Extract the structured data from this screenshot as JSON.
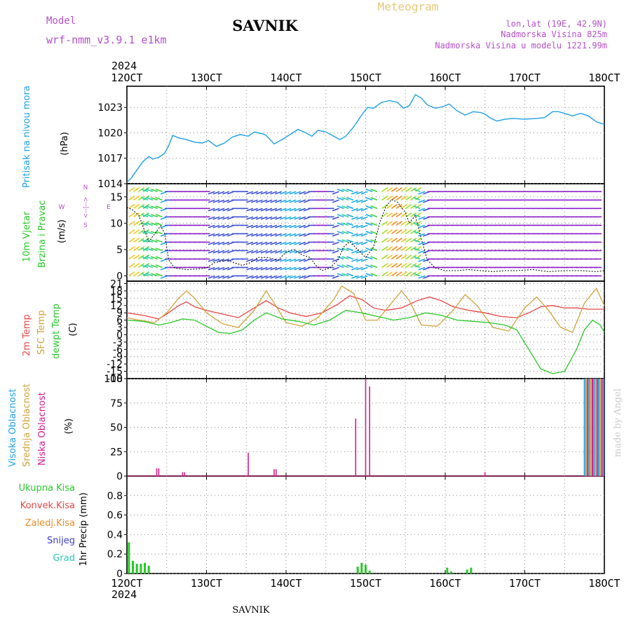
{
  "header": {
    "model_label": "Model",
    "model_name": "wrf-nmm_v3.9.1 e1km",
    "station": "SAVNIK",
    "product": "Meteogram",
    "lonlat": "lon,lat (19E, 42.9N)",
    "elevation": "Nadmorska Visina 825m",
    "model_elevation": "Nadmorska Visina u modelu 1221.99m",
    "footer_station": "SAVNIK",
    "credit": "made by Angel"
  },
  "colors": {
    "pressure": "#1ea0e6",
    "temp2m": "#e64646",
    "sfc_temp": "#d2a23c",
    "dewpoint": "#28c828",
    "high_cloud": "#1ea0e6",
    "mid_cloud": "#d2a23c",
    "low_cloud": "#d21e8c",
    "total_precip": "#28c828",
    "conv_precip": "#e64646",
    "frozen_precip": "#f08c28",
    "snow": "#3c3cd2",
    "hail": "#28c8b4",
    "model_label": "#b450c8",
    "wind_label": "#28c828"
  },
  "chart_data": [
    {
      "type": "line",
      "name": "pressure",
      "title": "Pritisak na nivou mora",
      "ylabel": "(hPa)",
      "ylim": [
        1014,
        1025.5
      ],
      "yticks": [
        1014,
        1017,
        1020,
        1023
      ],
      "x_ticks": [
        "12OCT",
        "13OCT",
        "14OCT",
        "15OCT",
        "16OCT",
        "17OCT",
        "18OCT"
      ],
      "year": "2024",
      "points": [
        [
          0,
          1014.2
        ],
        [
          0.1,
          1014.6
        ],
        [
          0.25,
          1015.6
        ],
        [
          0.4,
          1016.6
        ],
        [
          0.55,
          1017.2
        ],
        [
          0.65,
          1016.9
        ],
        [
          0.8,
          1017.1
        ],
        [
          0.95,
          1017.6
        ],
        [
          1.05,
          1018.5
        ],
        [
          1.15,
          1019.7
        ],
        [
          1.3,
          1019.4
        ],
        [
          1.5,
          1019.2
        ],
        [
          1.7,
          1018.9
        ],
        [
          1.9,
          1018.8
        ],
        [
          2.05,
          1019.1
        ],
        [
          2.25,
          1018.4
        ],
        [
          2.45,
          1018.8
        ],
        [
          2.65,
          1019.5
        ],
        [
          2.85,
          1019.8
        ],
        [
          3.05,
          1019.6
        ],
        [
          3.2,
          1020.1
        ],
        [
          3.4,
          1019.9
        ],
        [
          3.5,
          1019.7
        ],
        [
          3.7,
          1018.7
        ],
        [
          3.9,
          1019.2
        ],
        [
          4.1,
          1019.8
        ],
        [
          4.3,
          1020.4
        ],
        [
          4.5,
          1020.0
        ],
        [
          4.65,
          1019.6
        ],
        [
          4.8,
          1020.3
        ],
        [
          5.0,
          1020.1
        ],
        [
          5.2,
          1019.6
        ],
        [
          5.35,
          1019.2
        ],
        [
          5.5,
          1019.6
        ],
        [
          5.7,
          1020.7
        ],
        [
          5.9,
          1022.1
        ],
        [
          6.05,
          1023.0
        ],
        [
          6.2,
          1022.9
        ],
        [
          6.4,
          1023.6
        ],
        [
          6.6,
          1023.8
        ],
        [
          6.8,
          1023.6
        ],
        [
          6.95,
          1022.9
        ],
        [
          7.1,
          1023.2
        ],
        [
          7.25,
          1024.5
        ],
        [
          7.4,
          1024.1
        ],
        [
          7.55,
          1023.3
        ],
        [
          7.75,
          1022.9
        ],
        [
          7.95,
          1023.1
        ],
        [
          8.1,
          1023.4
        ],
        [
          8.3,
          1022.6
        ],
        [
          8.5,
          1022.1
        ],
        [
          8.7,
          1022.5
        ],
        [
          8.9,
          1022.4
        ],
        [
          9.0,
          1022.2
        ],
        [
          9.15,
          1021.7
        ],
        [
          9.3,
          1021.4
        ],
        [
          9.5,
          1021.6
        ],
        [
          9.7,
          1021.7
        ],
        [
          10.0,
          1021.6
        ],
        [
          10.3,
          1021.7
        ],
        [
          10.5,
          1021.8
        ],
        [
          10.7,
          1022.5
        ],
        [
          10.85,
          1022.5
        ],
        [
          11.0,
          1022.3
        ],
        [
          11.2,
          1022.0
        ],
        [
          11.4,
          1022.3
        ],
        [
          11.6,
          1022.0
        ],
        [
          11.8,
          1021.3
        ],
        [
          12.0,
          1021.0
        ]
      ]
    },
    {
      "type": "line",
      "name": "wind",
      "title_1": "10m Vjetar",
      "title_2": "Brzina i Pravac",
      "ylabel": "(m/s)",
      "ylim": [
        -1,
        17.5
      ],
      "yticks": [
        0,
        5,
        10,
        15
      ],
      "compass": {
        "n": "N",
        "w": "W",
        "e": "E",
        "s": "S",
        "arrow": "<--|-->"
      },
      "points": [
        [
          0,
          13
        ],
        [
          0.15,
          12.5
        ],
        [
          0.3,
          11.5
        ],
        [
          0.45,
          8.5
        ],
        [
          0.55,
          6.5
        ],
        [
          0.7,
          8
        ],
        [
          0.85,
          9.5
        ],
        [
          0.95,
          8
        ],
        [
          1.05,
          3
        ],
        [
          1.2,
          1.5
        ],
        [
          1.5,
          1.2
        ],
        [
          1.8,
          1.3
        ],
        [
          2.0,
          1.5
        ],
        [
          2.2,
          2.5
        ],
        [
          2.5,
          3
        ],
        [
          2.7,
          2.5
        ],
        [
          2.9,
          2
        ],
        [
          3.1,
          2.5
        ],
        [
          3.3,
          3.5
        ],
        [
          3.55,
          3.5
        ],
        [
          3.8,
          3
        ],
        [
          4.0,
          4.5
        ],
        [
          4.2,
          5
        ],
        [
          4.4,
          4
        ],
        [
          4.6,
          3.5
        ],
        [
          4.75,
          2
        ],
        [
          4.9,
          1
        ],
        [
          5.1,
          1.5
        ],
        [
          5.3,
          3
        ],
        [
          5.45,
          5.5
        ],
        [
          5.6,
          6.5
        ],
        [
          5.8,
          5
        ],
        [
          6.0,
          3.5
        ],
        [
          6.2,
          5.5
        ],
        [
          6.35,
          10
        ],
        [
          6.5,
          13
        ],
        [
          6.65,
          14.5
        ],
        [
          6.8,
          14
        ],
        [
          7.0,
          12
        ],
        [
          7.1,
          10
        ],
        [
          7.25,
          11.5
        ],
        [
          7.4,
          7
        ],
        [
          7.55,
          3
        ],
        [
          7.75,
          1.5
        ],
        [
          8.0,
          1
        ],
        [
          8.3,
          1
        ],
        [
          8.6,
          1.2
        ],
        [
          8.9,
          1
        ],
        [
          9.2,
          0.8
        ],
        [
          9.5,
          1
        ],
        [
          9.8,
          1
        ],
        [
          10.2,
          1.2
        ],
        [
          10.6,
          0.8
        ],
        [
          11.0,
          1
        ],
        [
          11.4,
          1
        ],
        [
          11.8,
          0.8
        ],
        [
          12.0,
          1
        ]
      ]
    },
    {
      "type": "line",
      "name": "temperature",
      "label_2m": "2m Temp",
      "label_sfc": "SFC Temp",
      "label_dew": "dewpt Temp",
      "ylabel": "(C)",
      "ylim": [
        -18,
        22
      ],
      "yticks": [
        -18,
        -15,
        -12,
        -9,
        -6,
        -3,
        0,
        3,
        6,
        9,
        12,
        15,
        18,
        21
      ],
      "series": [
        {
          "name": "2m Temp",
          "points": [
            [
              0,
              9
            ],
            [
              0.4,
              8
            ],
            [
              0.8,
              6.5
            ],
            [
              1.0,
              8.5
            ],
            [
              1.3,
              12
            ],
            [
              1.5,
              13.5
            ],
            [
              1.7,
              11.5
            ],
            [
              2.0,
              10
            ],
            [
              2.4,
              8.5
            ],
            [
              2.8,
              7
            ],
            [
              3.2,
              11
            ],
            [
              3.5,
              14
            ],
            [
              3.8,
              11
            ],
            [
              4.1,
              9
            ],
            [
              4.5,
              7.5
            ],
            [
              4.9,
              9
            ],
            [
              5.3,
              12.5
            ],
            [
              5.6,
              16
            ],
            [
              5.9,
              14.5
            ],
            [
              6.2,
              11
            ],
            [
              6.5,
              10
            ],
            [
              6.9,
              11
            ],
            [
              7.3,
              14
            ],
            [
              7.6,
              15.5
            ],
            [
              7.9,
              14
            ],
            [
              8.2,
              11.5
            ],
            [
              8.6,
              10
            ],
            [
              9.0,
              9
            ],
            [
              9.4,
              7.5
            ],
            [
              9.8,
              7
            ],
            [
              10.1,
              9
            ],
            [
              10.4,
              11.5
            ],
            [
              10.7,
              12
            ],
            [
              11.0,
              11
            ],
            [
              11.3,
              11
            ],
            [
              11.6,
              10.5
            ],
            [
              12.0,
              10.5
            ]
          ]
        },
        {
          "name": "SFC Temp",
          "points": [
            [
              0,
              7
            ],
            [
              0.3,
              6
            ],
            [
              0.7,
              5
            ],
            [
              1.0,
              9
            ],
            [
              1.3,
              15
            ],
            [
              1.5,
              18
            ],
            [
              1.7,
              15
            ],
            [
              2.0,
              9
            ],
            [
              2.4,
              4.5
            ],
            [
              2.8,
              3
            ],
            [
              3.2,
              10
            ],
            [
              3.5,
              18
            ],
            [
              3.7,
              13
            ],
            [
              4.0,
              5
            ],
            [
              4.4,
              3.5
            ],
            [
              4.8,
              7
            ],
            [
              5.2,
              14.5
            ],
            [
              5.4,
              20
            ],
            [
              5.7,
              17
            ],
            [
              6.0,
              6
            ],
            [
              6.3,
              6
            ],
            [
              6.6,
              12
            ],
            [
              6.9,
              18
            ],
            [
              7.1,
              14
            ],
            [
              7.4,
              4
            ],
            [
              7.8,
              3.5
            ],
            [
              8.2,
              10
            ],
            [
              8.5,
              16.5
            ],
            [
              8.8,
              12
            ],
            [
              9.2,
              3
            ],
            [
              9.6,
              1.5
            ],
            [
              10.0,
              11
            ],
            [
              10.3,
              15.5
            ],
            [
              10.6,
              10
            ],
            [
              10.9,
              3
            ],
            [
              11.2,
              1
            ],
            [
              11.5,
              13
            ],
            [
              11.8,
              19
            ],
            [
              12.0,
              12
            ]
          ]
        },
        {
          "name": "dewpt Temp",
          "points": [
            [
              0,
              6
            ],
            [
              0.4,
              5.5
            ],
            [
              0.8,
              4
            ],
            [
              1.1,
              5
            ],
            [
              1.4,
              6.5
            ],
            [
              1.7,
              6
            ],
            [
              2.0,
              3.5
            ],
            [
              2.3,
              1
            ],
            [
              2.6,
              0.5
            ],
            [
              2.9,
              2
            ],
            [
              3.2,
              6
            ],
            [
              3.5,
              9
            ],
            [
              3.9,
              6.5
            ],
            [
              4.3,
              5.5
            ],
            [
              4.7,
              4
            ],
            [
              5.1,
              6
            ],
            [
              5.5,
              10
            ],
            [
              5.9,
              9
            ],
            [
              6.3,
              7.5
            ],
            [
              6.7,
              6
            ],
            [
              7.1,
              7
            ],
            [
              7.5,
              9
            ],
            [
              7.9,
              8
            ],
            [
              8.3,
              6
            ],
            [
              8.7,
              5.5
            ],
            [
              9.1,
              5
            ],
            [
              9.5,
              4
            ],
            [
              9.8,
              2
            ],
            [
              10.1,
              -6
            ],
            [
              10.4,
              -14
            ],
            [
              10.7,
              -16
            ],
            [
              11.0,
              -15
            ],
            [
              11.3,
              -6
            ],
            [
              11.5,
              2
            ],
            [
              11.7,
              6
            ],
            [
              11.9,
              4
            ],
            [
              12.0,
              1
            ]
          ]
        }
      ]
    },
    {
      "type": "bar",
      "name": "cloud",
      "label_high": "Visoka Oblacnost",
      "label_mid": "Srednja Oblacnost",
      "label_low": "Niska Oblacnost",
      "ylabel": "(%)",
      "ylim": [
        0,
        100
      ],
      "yticks": [
        0,
        25,
        50,
        75,
        100
      ],
      "low_bars": [
        [
          0.75,
          8
        ],
        [
          0.8,
          8
        ],
        [
          1.4,
          4
        ],
        [
          1.45,
          4
        ],
        [
          3.05,
          24
        ],
        [
          3.7,
          7
        ],
        [
          3.75,
          7
        ],
        [
          5.75,
          59
        ],
        [
          6.0,
          100
        ],
        [
          6.1,
          92
        ],
        [
          9.0,
          4
        ]
      ],
      "high_block": {
        "start": 11.5,
        "end": 12.0,
        "value": 100
      }
    },
    {
      "type": "bar",
      "name": "precip",
      "labels": [
        "Ukupna Kisa",
        "Konvek.Kisa",
        "Zaledj.Kisa",
        "Snijeg",
        "Grad"
      ],
      "ylabel": "1hr Precip (mm)",
      "ylim": [
        0,
        1.0
      ],
      "yticks": [
        0,
        0.2,
        0.4,
        0.6,
        0.8
      ],
      "bars": [
        [
          0.05,
          0.32
        ],
        [
          0.15,
          0.13
        ],
        [
          0.25,
          0.1
        ],
        [
          0.35,
          0.1
        ],
        [
          0.45,
          0.11
        ],
        [
          0.55,
          0.08
        ],
        [
          5.8,
          0.07
        ],
        [
          5.9,
          0.11
        ],
        [
          6.0,
          0.09
        ],
        [
          6.1,
          0.03
        ],
        [
          8.05,
          0.06
        ],
        [
          8.15,
          0.02
        ],
        [
          8.55,
          0.04
        ],
        [
          8.65,
          0.06
        ]
      ]
    }
  ]
}
